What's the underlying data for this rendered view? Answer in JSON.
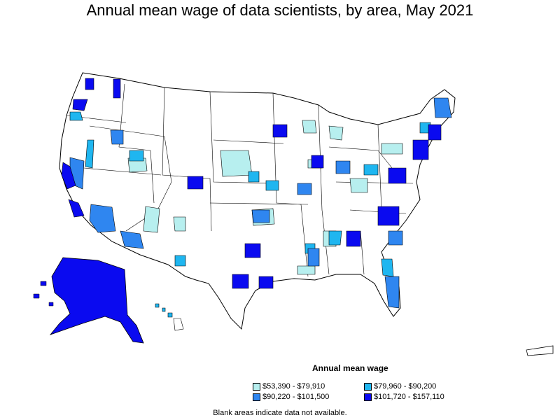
{
  "title": "Annual mean wage of data scientists, by area, May 2021",
  "legend": {
    "title": "Annual mean wage",
    "items": [
      {
        "label": "$53,390 - $79,910",
        "color": "#b7efef"
      },
      {
        "label": "$79,960 - $90,200",
        "color": "#1fb6f0"
      },
      {
        "label": "$90,220 - $101,500",
        "color": "#2f86f0"
      },
      {
        "label": "$101,720 - $157,110",
        "color": "#0a0af0"
      }
    ]
  },
  "note": "Blank areas indicate data not available."
}
